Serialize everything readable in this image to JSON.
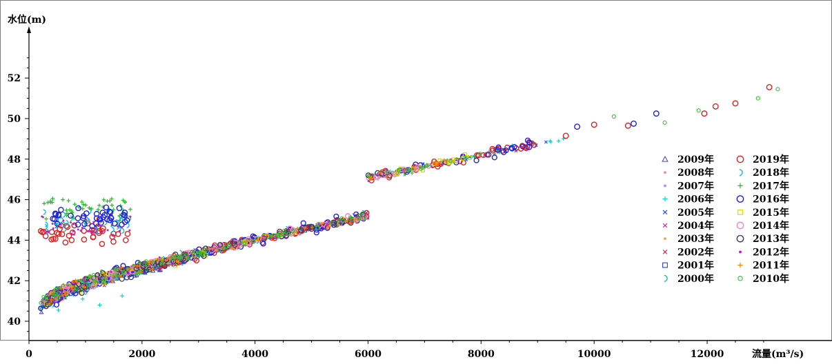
{
  "chart_data": {
    "type": "scatter",
    "title": "",
    "ylabel": "水位(m)",
    "xlabel": "流量(m³/s)",
    "xlim": [
      0,
      14000
    ],
    "ylim": [
      39.2,
      54
    ],
    "x_ticks": [
      0,
      2000,
      4000,
      6000,
      8000,
      10000,
      12000
    ],
    "y_ticks": [
      40,
      42,
      44,
      46,
      48,
      50,
      52
    ],
    "grid": false,
    "legend_position": "right",
    "series": [
      {
        "name": "2009年",
        "color": "#4040c0",
        "marker": "triangle"
      },
      {
        "name": "2008年",
        "color": "#ff8080",
        "marker": "square-small"
      },
      {
        "name": "2007年",
        "color": "#c080ff",
        "marker": "dot"
      },
      {
        "name": "2006年",
        "color": "#00d8d8",
        "marker": "plus"
      },
      {
        "name": "2005年",
        "color": "#2050ff",
        "marker": "cross"
      },
      {
        "name": "2004年",
        "color": "#e020a0",
        "marker": "cross"
      },
      {
        "name": "2003年",
        "color": "#ffa060",
        "marker": "dot"
      },
      {
        "name": "2002年",
        "color": "#d02060",
        "marker": "cross"
      },
      {
        "name": "2001年",
        "color": "#2040e0",
        "marker": "square"
      },
      {
        "name": "2000年",
        "color": "#00c080",
        "marker": "arc"
      },
      {
        "name": "2019年",
        "color": "#e02020",
        "marker": "circle"
      },
      {
        "name": "2018年",
        "color": "#00b8e0",
        "marker": "arc"
      },
      {
        "name": "2017年",
        "color": "#20c020",
        "marker": "plus"
      },
      {
        "name": "2016年",
        "color": "#2020e0",
        "marker": "circle"
      },
      {
        "name": "2015年",
        "color": "#d8d800",
        "marker": "square"
      },
      {
        "name": "2014年",
        "color": "#ff80c0",
        "marker": "circle"
      },
      {
        "name": "2013年",
        "color": "#404060",
        "marker": "circle"
      },
      {
        "name": "2012年",
        "color": "#c020c0",
        "marker": "dot"
      },
      {
        "name": "2011年",
        "color": "#ff7f00",
        "marker": "plus"
      },
      {
        "name": "2010年",
        "color": "#30c030",
        "marker": "circle-small"
      }
    ],
    "highlights": [
      {
        "series": "2019年",
        "points": [
          [
            13100,
            51.55
          ],
          [
            12150,
            50.6
          ],
          [
            11950,
            50.25
          ],
          [
            12500,
            50.75
          ],
          [
            9500,
            49.15
          ],
          [
            10000,
            49.7
          ],
          [
            10600,
            49.65
          ]
        ]
      },
      {
        "series": "2010年",
        "points": [
          [
            13250,
            51.45
          ],
          [
            12900,
            51.0
          ],
          [
            11850,
            50.4
          ],
          [
            10350,
            50.1
          ],
          [
            11250,
            49.8
          ]
        ]
      },
      {
        "series": "2016年",
        "points": [
          [
            11100,
            50.25
          ],
          [
            10700,
            49.75
          ],
          [
            9700,
            49.6
          ],
          [
            8850,
            48.6
          ],
          [
            8400,
            48.35
          ]
        ]
      },
      {
        "series": "2017年",
        "points": [
          [
            420,
            46.05
          ],
          [
            600,
            46.0
          ],
          [
            700,
            45.95
          ]
        ]
      },
      {
        "series": "2006年",
        "points": [
          [
            950,
            41.1
          ],
          [
            1250,
            40.8
          ],
          [
            1650,
            41.25
          ],
          [
            520,
            40.55
          ]
        ]
      }
    ]
  }
}
